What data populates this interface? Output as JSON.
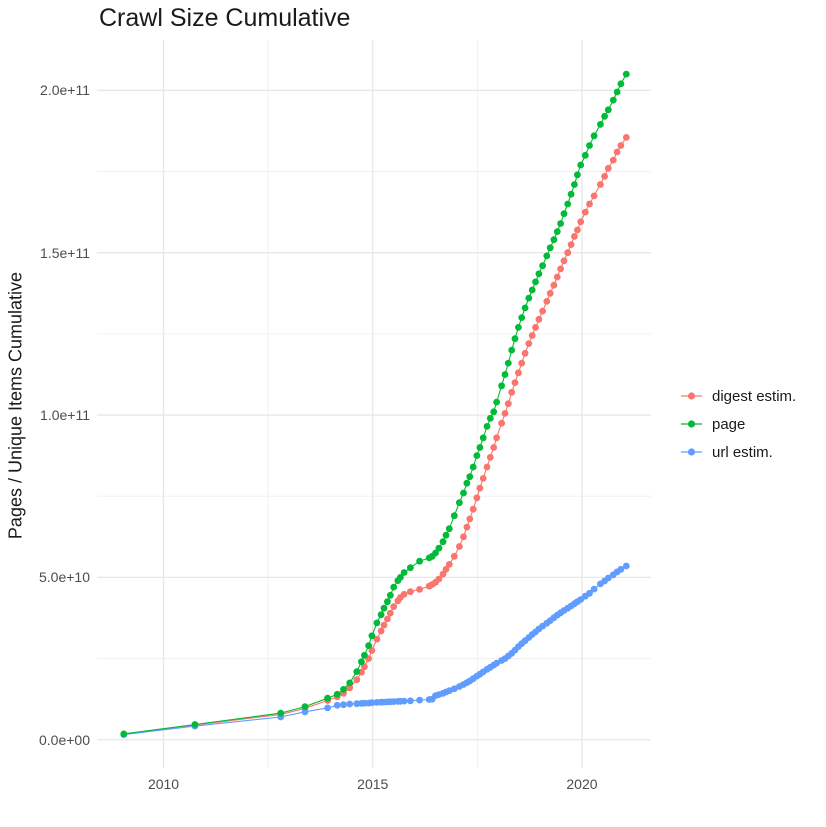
{
  "chart_data": {
    "type": "scatter",
    "title": "Crawl Size Cumulative",
    "xlabel": "",
    "ylabel": "Pages / Unique Items Cumulative",
    "note": "cumulative number of pages / unique items per crawl; series values stored in billions (1e9)",
    "background": "#FFFFFF",
    "grid": true,
    "grid_major_color": "#e7e7e7",
    "grid_minor_color": "#f0f0f0",
    "tick_label_color": "#4d4d4d",
    "text_color": "#1a1a1a",
    "x_axis": {
      "tick_labels": [
        "2010",
        "2015",
        "2020"
      ],
      "tick_values": [
        2010,
        2015,
        2020
      ],
      "minor_tick_values": [
        2012.5,
        2017.5
      ],
      "range": [
        2008.41,
        2021.65
      ]
    },
    "y_axis": {
      "tick_labels": [
        "0.0e+00",
        "5.0e+10",
        "1.0e+11",
        "1.5e+11",
        "2.0e+11"
      ],
      "tick_values_billions": [
        0,
        50,
        100,
        150,
        200
      ],
      "minor_tick_values_billions": [
        25,
        75,
        125,
        175
      ],
      "range_billions": [
        -8.7,
        215.5
      ]
    },
    "legend": {
      "position": "right",
      "entries": [
        "digest estim.",
        "page",
        "url estim."
      ]
    },
    "x_years": [
      2009.05,
      2010.75,
      2012.8,
      2013.38,
      2013.92,
      2014.15,
      2014.3,
      2014.45,
      2014.62,
      2014.73,
      2014.8,
      2014.9,
      2014.98,
      2015.1,
      2015.2,
      2015.27,
      2015.35,
      2015.42,
      2015.5,
      2015.6,
      2015.66,
      2015.75,
      2015.9,
      2016.12,
      2016.35,
      2016.42,
      2016.5,
      2016.58,
      2016.68,
      2016.75,
      2016.83,
      2016.95,
      2017.07,
      2017.17,
      2017.25,
      2017.32,
      2017.4,
      2017.49,
      2017.56,
      2017.64,
      2017.73,
      2017.81,
      2017.89,
      2017.96,
      2018.08,
      2018.16,
      2018.24,
      2018.32,
      2018.4,
      2018.48,
      2018.56,
      2018.64,
      2018.73,
      2018.81,
      2018.89,
      2018.97,
      2019.06,
      2019.16,
      2019.24,
      2019.33,
      2019.41,
      2019.49,
      2019.57,
      2019.66,
      2019.74,
      2019.82,
      2019.89,
      2019.97,
      2020.08,
      2020.18,
      2020.29,
      2020.44,
      2020.54,
      2020.63,
      2020.75,
      2020.84,
      2020.93,
      2021.06
    ],
    "series": [
      {
        "name": "digest estim.",
        "color": "#F8766D",
        "draw_order": 1,
        "values_billions": [
          1.7,
          4.5,
          7.8,
          9.7,
          12.1,
          13.2,
          14.3,
          16.0,
          18.5,
          20.8,
          22.5,
          25.0,
          27.5,
          31.0,
          33.5,
          35.3,
          37.2,
          39.0,
          41.0,
          42.8,
          43.8,
          44.8,
          45.6,
          46.3,
          47.3,
          47.8,
          48.5,
          49.5,
          51.0,
          52.5,
          54.0,
          56.5,
          59.5,
          62.5,
          65.5,
          68.0,
          71.0,
          74.5,
          77.5,
          80.5,
          84.0,
          87.0,
          90.0,
          93.0,
          97.5,
          100.5,
          103.5,
          107.0,
          110.0,
          113.0,
          116.0,
          119.0,
          122.0,
          124.5,
          127.0,
          129.5,
          132.0,
          135.0,
          137.5,
          140.0,
          142.5,
          145.0,
          147.5,
          150.0,
          152.5,
          155.0,
          157.0,
          159.5,
          162.5,
          165.0,
          167.5,
          171.0,
          173.5,
          176.0,
          178.5,
          181.0,
          183.0,
          185.5
        ]
      },
      {
        "name": "page",
        "color": "#00BA38",
        "draw_order": 3,
        "values_billions": [
          1.8,
          4.7,
          8.2,
          10.2,
          12.8,
          14.0,
          15.5,
          17.5,
          21.0,
          24.0,
          26.0,
          29.0,
          32.0,
          36.0,
          38.5,
          40.5,
          42.5,
          44.5,
          47.0,
          49.0,
          50.0,
          51.5,
          53.0,
          55.0,
          56.0,
          56.5,
          57.5,
          59.0,
          61.0,
          63.0,
          65.0,
          69.0,
          73.0,
          76.0,
          79.0,
          81.0,
          84.0,
          87.5,
          90.0,
          93.0,
          96.5,
          99.0,
          101.0,
          104.0,
          109.0,
          112.5,
          116.0,
          120.0,
          123.5,
          127.0,
          130.0,
          133.0,
          136.0,
          138.5,
          141.0,
          143.5,
          146.0,
          149.0,
          151.5,
          154.0,
          156.5,
          159.0,
          162.0,
          165.0,
          168.0,
          171.0,
          174.0,
          177.0,
          180.0,
          183.0,
          186.0,
          189.5,
          192.0,
          194.0,
          197.0,
          199.5,
          202.0,
          205.0
        ]
      },
      {
        "name": "url estim.",
        "color": "#619CFF",
        "draw_order": 2,
        "values_billions": [
          1.6,
          4.2,
          7.0,
          8.6,
          9.8,
          10.6,
          10.8,
          11.0,
          11.1,
          11.2,
          11.25,
          11.3,
          11.4,
          11.5,
          11.55,
          11.6,
          11.65,
          11.7,
          11.75,
          11.8,
          11.85,
          11.9,
          12.0,
          12.2,
          12.4,
          12.5,
          13.6,
          13.9,
          14.3,
          14.7,
          15.1,
          15.7,
          16.4,
          17.0,
          17.6,
          18.1,
          18.8,
          19.6,
          20.2,
          20.9,
          21.7,
          22.3,
          23.0,
          23.6,
          24.4,
          25.0,
          25.8,
          26.6,
          27.6,
          28.7,
          29.6,
          30.5,
          31.5,
          32.4,
          33.2,
          34.1,
          35.0,
          35.9,
          36.7,
          37.6,
          38.4,
          39.1,
          39.8,
          40.5,
          41.2,
          41.9,
          42.5,
          43.2,
          44.2,
          45.1,
          46.4,
          48.0,
          48.9,
          49.8,
          50.8,
          51.7,
          52.5,
          53.5
        ]
      }
    ]
  }
}
